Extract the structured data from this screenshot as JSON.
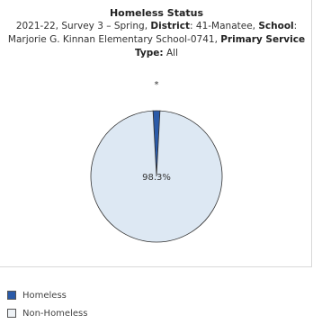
{
  "chart_data": {
    "type": "pie",
    "title": "Homeless Status",
    "subtitle": {
      "year": "2021-22, Survey 3 – Spring,",
      "district_label": "District",
      "district_value": ": 41-Manatee,",
      "school_label": "School",
      "school_value": ": Marjorie G. Kinnan Elementary School-0741,",
      "service_label": "Primary Service Type:",
      "service_value": "All"
    },
    "slices": [
      {
        "label": "Homeless",
        "value": 1.7,
        "display": "*",
        "color": "#2a5aa8"
      },
      {
        "label": "Non-Homeless",
        "value": 98.3,
        "display": "98.3%",
        "color": "#dde8f3"
      }
    ],
    "legend_position": "bottom-left"
  },
  "legend": {
    "items": [
      {
        "label": "Homeless",
        "color": "#2a5aa8"
      },
      {
        "label": "Non-Homeless",
        "color": "#eef2f6"
      }
    ]
  }
}
